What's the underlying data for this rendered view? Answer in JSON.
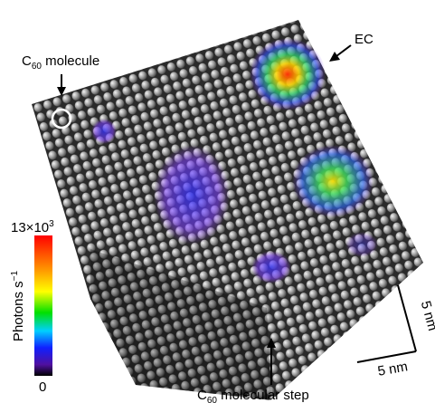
{
  "labels": {
    "molecule": {
      "base": "C",
      "sub": "60",
      "rest": " molecule"
    },
    "ec": "EC",
    "colorbar_max": {
      "base": "13×10",
      "sup": "3"
    },
    "colorbar_unit": {
      "base": "Photons s",
      "sup": "−1"
    },
    "colorbar_min": "0",
    "scale_vertical": "5 nm",
    "scale_horizontal": "5 nm",
    "step": {
      "base": "C",
      "sub": "60",
      "rest": " molecular step"
    }
  }
}
